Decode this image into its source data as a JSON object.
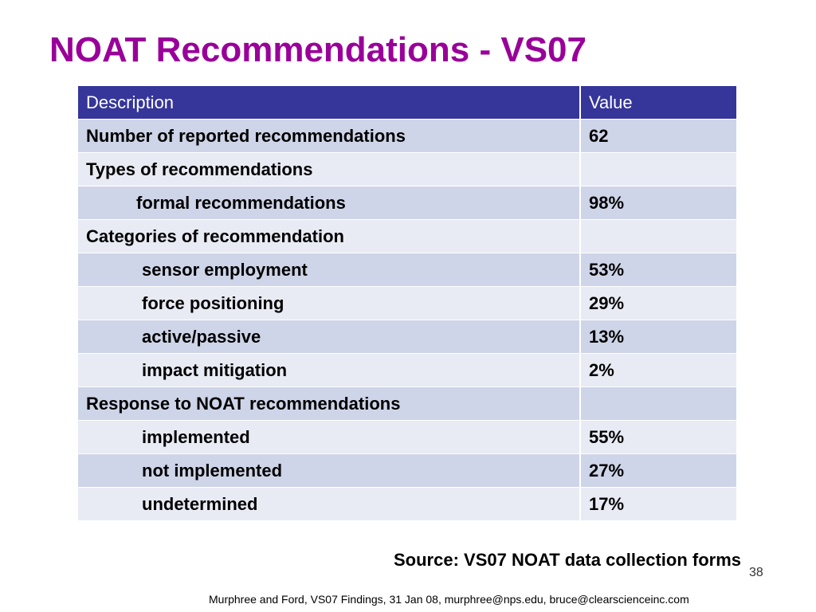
{
  "title": "NOAT Recommendations - VS07",
  "table": {
    "headers": {
      "description": "Description",
      "value": "Value"
    },
    "rows": [
      {
        "description": "Number of reported recommendations",
        "value": "62",
        "indent": 0
      },
      {
        "description": "Types of recommendations",
        "value": "",
        "indent": 0
      },
      {
        "description": "formal recommendations",
        "value": "98%",
        "indent": 1
      },
      {
        "description": "Categories of recommendation",
        "value": "",
        "indent": 0
      },
      {
        "description": "sensor employment",
        "value": "53%",
        "indent": 2
      },
      {
        "description": "force positioning",
        "value": "29%",
        "indent": 2
      },
      {
        "description": "active/passive",
        "value": "13%",
        "indent": 2
      },
      {
        "description": "impact mitigation",
        "value": "2%",
        "indent": 2
      },
      {
        "description": "Response to NOAT recommendations",
        "value": "",
        "indent": 0
      },
      {
        "description": "implemented",
        "value": "55%",
        "indent": 2
      },
      {
        "description": "not implemented",
        "value": "27%",
        "indent": 2
      },
      {
        "description": "undetermined",
        "value": "17%",
        "indent": 2
      }
    ]
  },
  "source": "Source:  VS07 NOAT data collection forms",
  "slide_number": "38",
  "footer": "Murphree and Ford, VS07 Findings, 31 Jan 08, murphree@nps.edu, bruce@clearscienceinc.com",
  "colors": {
    "title": "#990099",
    "header_bg": "#35359a",
    "row_dark": "#cfd5e8",
    "row_light": "#e8ebf4"
  }
}
